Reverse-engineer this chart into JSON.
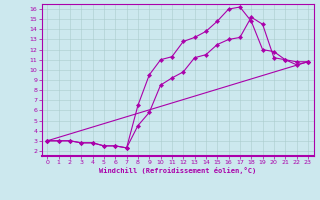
{
  "xlabel": "Windchill (Refroidissement éolien,°C)",
  "bg_color": "#cce8ee",
  "line_color": "#aa00aa",
  "grid_color": "#aacccc",
  "xlim": [
    -0.5,
    23.5
  ],
  "ylim": [
    1.5,
    16.5
  ],
  "xticks": [
    0,
    1,
    2,
    3,
    4,
    5,
    6,
    7,
    8,
    9,
    10,
    11,
    12,
    13,
    14,
    15,
    16,
    17,
    18,
    19,
    20,
    21,
    22,
    23
  ],
  "yticks": [
    2,
    3,
    4,
    5,
    6,
    7,
    8,
    9,
    10,
    11,
    12,
    13,
    14,
    15,
    16
  ],
  "line1_x": [
    0,
    1,
    2,
    3,
    4,
    5,
    6,
    7,
    8,
    9,
    10,
    11,
    12,
    13,
    14,
    15,
    16,
    17,
    18,
    19,
    20,
    21,
    22,
    23
  ],
  "line1_y": [
    3,
    3,
    3,
    2.8,
    2.8,
    2.5,
    2.5,
    2.3,
    6.5,
    9.5,
    11.0,
    11.3,
    12.8,
    13.2,
    13.8,
    14.8,
    16.0,
    16.2,
    14.8,
    12.0,
    11.8,
    11.0,
    10.5,
    10.8
  ],
  "line2_x": [
    0,
    1,
    2,
    3,
    4,
    5,
    6,
    7,
    8,
    9,
    10,
    11,
    12,
    13,
    14,
    15,
    16,
    17,
    18,
    19,
    20,
    21,
    22,
    23
  ],
  "line2_y": [
    3,
    3,
    3,
    2.8,
    2.8,
    2.5,
    2.5,
    2.3,
    4.5,
    5.8,
    8.5,
    9.2,
    9.8,
    11.2,
    11.5,
    12.5,
    13.0,
    13.2,
    15.2,
    14.5,
    11.2,
    11.0,
    10.8,
    10.8
  ],
  "line3_x": [
    0,
    23
  ],
  "line3_y": [
    3,
    10.8
  ]
}
